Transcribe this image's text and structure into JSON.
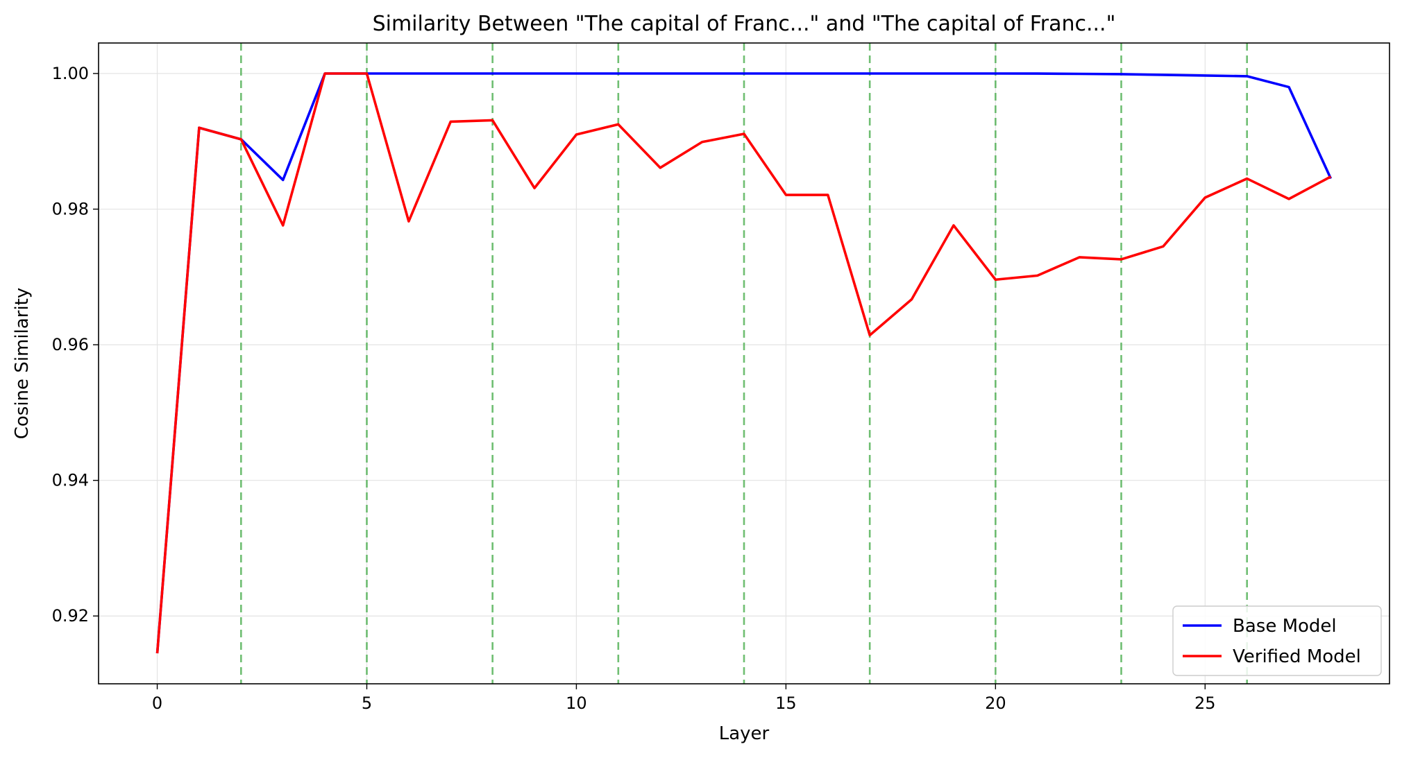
{
  "chart_data": {
    "type": "line",
    "title": "Similarity Between \"The capital of Franc...\" and \"The capital of Franc...\"",
    "xlabel": "Layer",
    "ylabel": "Cosine Similarity",
    "xlim": [
      -1.4,
      29.4
    ],
    "ylim": [
      0.91,
      1.0045
    ],
    "xticks": [
      0,
      5,
      10,
      15,
      20,
      25
    ],
    "yticks": [
      0.92,
      0.94,
      0.96,
      0.98,
      1.0
    ],
    "ytick_labels": [
      "0.92",
      "0.94",
      "0.96",
      "0.98",
      "1.00"
    ],
    "grid": true,
    "legend_position": "lower-right",
    "x": [
      0,
      1,
      2,
      3,
      4,
      5,
      6,
      7,
      8,
      9,
      10,
      11,
      12,
      13,
      14,
      15,
      16,
      17,
      18,
      19,
      20,
      21,
      22,
      23,
      24,
      25,
      26,
      27,
      28
    ],
    "series": [
      {
        "name": "Base Model",
        "color": "#0000ff",
        "values": [
          0.9145,
          0.992,
          0.9903,
          0.9843,
          1.0,
          1.0,
          1.0,
          1.0,
          1.0,
          1.0,
          1.0,
          1.0,
          1.0,
          1.0,
          1.0,
          1.0,
          1.0,
          1.0,
          1.0,
          1.0,
          1.0,
          0.99999,
          0.99995,
          0.9999,
          0.9998,
          0.9997,
          0.9996,
          0.998,
          0.9845
        ]
      },
      {
        "name": "Verified Model",
        "color": "#ff0000",
        "values": [
          0.9145,
          0.992,
          0.9903,
          0.9776,
          1.0,
          1.0,
          0.9782,
          0.9929,
          0.9931,
          0.9831,
          0.991,
          0.9925,
          0.9861,
          0.9899,
          0.9911,
          0.9821,
          0.9821,
          0.9614,
          0.9667,
          0.9776,
          0.9696,
          0.9702,
          0.9729,
          0.9726,
          0.9745,
          0.9817,
          0.9845,
          0.9815,
          0.9848
        ]
      }
    ],
    "vertical_lines": {
      "x": [
        2,
        5,
        8,
        11,
        14,
        17,
        20,
        23,
        26
      ],
      "color": "#4caf50",
      "style": "dashed"
    }
  }
}
